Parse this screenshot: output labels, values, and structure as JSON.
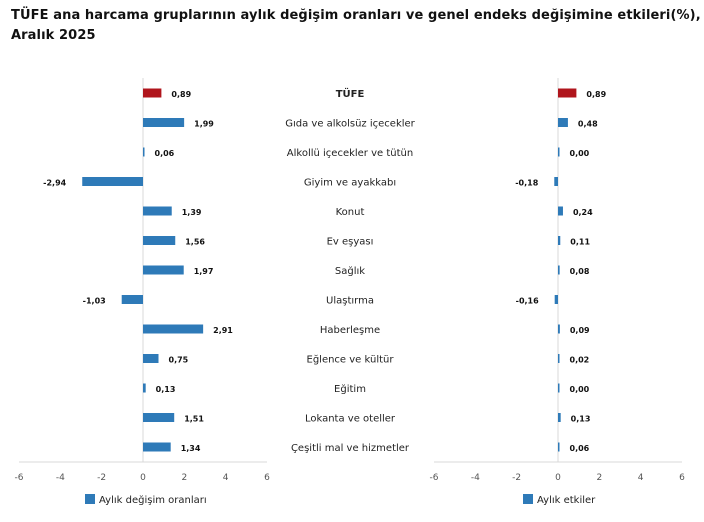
{
  "chart_data": [
    {
      "type": "bar",
      "orientation": "horizontal",
      "title": "TÜFE ana harcama gruplarının aylık değişim oranları ve genel endeks değişimine etkileri(%), Aralık 2025",
      "categories": [
        "TÜFE",
        "Gıda ve alkolsüz içecekler",
        "Alkollü içecekler ve tütün",
        "Giyim ve ayakkabı",
        "Konut",
        "Ev eşyası",
        "Sağlık",
        "Ulaştırma",
        "Haberleşme",
        "Eğlence ve kültür",
        "Eğitim",
        "Lokanta ve oteller",
        "Çeşitli mal ve hizmetler"
      ],
      "series": [
        {
          "name": "Aylık değişim oranları",
          "values": [
            0.89,
            1.99,
            0.06,
            -2.94,
            1.39,
            1.56,
            1.97,
            -1.03,
            2.91,
            0.75,
            0.13,
            1.51,
            1.34
          ],
          "labels": [
            "0,89",
            "1,99",
            "0,06",
            "-2,94",
            "1,39",
            "1,56",
            "1,97",
            "-1,03",
            "2,91",
            "0,75",
            "0,13",
            "1,51",
            "1,34"
          ]
        }
      ],
      "xlim": [
        -6,
        6
      ],
      "ticks": [
        "-6",
        "-4",
        "-2",
        "0",
        "2",
        "4",
        "6"
      ],
      "grid": false,
      "legend": "bottom",
      "colors": {
        "bar": "#2e7ab8",
        "highlight": "#b0151c"
      }
    },
    {
      "type": "bar",
      "orientation": "horizontal",
      "series": [
        {
          "name": "Aylık etkiler",
          "values": [
            0.89,
            0.48,
            0.0,
            -0.18,
            0.24,
            0.11,
            0.08,
            -0.16,
            0.09,
            0.02,
            0.0,
            0.13,
            0.06
          ],
          "labels": [
            "0,89",
            "0,48",
            "0,00",
            "-0,18",
            "0,24",
            "0,11",
            "0,08",
            "-0,16",
            "0,09",
            "0,02",
            "0,00",
            "0,13",
            "0,06"
          ]
        }
      ],
      "xlim": [
        -6,
        6
      ],
      "ticks": [
        "-6",
        "-4",
        "-2",
        "0",
        "2",
        "4",
        "6"
      ],
      "grid": false,
      "legend": "bottom",
      "colors": {
        "bar": "#2e7ab8",
        "highlight": "#b0151c"
      }
    }
  ]
}
